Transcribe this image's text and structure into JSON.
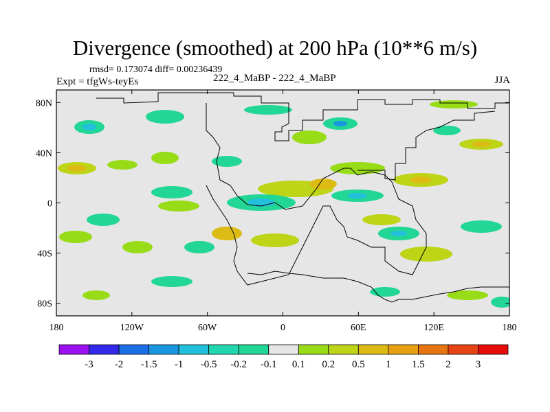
{
  "header": {
    "title": "Divergence (smoothed) at 200 hPa (10**6 m/s)",
    "stats": "rmsd= 0.173074 diff= 0.00236439",
    "expt": "Expt = tfgWs-teyEs",
    "runs": "222_4_MaBP - 222_4_MaBP",
    "season": "JJA"
  },
  "chart_data": {
    "type": "heatmap",
    "title": "Divergence (smoothed) at 200 hPa (10**6 m/s)",
    "xlabel": "",
    "ylabel": "",
    "xlim": [
      -180,
      180
    ],
    "ylim": [
      -90,
      90
    ],
    "x_ticks": [
      {
        "value": -180,
        "label": "180"
      },
      {
        "value": -120,
        "label": "120W"
      },
      {
        "value": -60,
        "label": "60W"
      },
      {
        "value": 0,
        "label": "0"
      },
      {
        "value": 60,
        "label": "60E"
      },
      {
        "value": 120,
        "label": "120E"
      },
      {
        "value": 180,
        "label": "180"
      }
    ],
    "y_ticks": [
      {
        "value": 80,
        "label": "80N"
      },
      {
        "value": 40,
        "label": "40N"
      },
      {
        "value": 0,
        "label": "0"
      },
      {
        "value": -40,
        "label": "40S"
      },
      {
        "value": -80,
        "label": "80S"
      }
    ],
    "colorbar": {
      "labels": [
        "-3",
        "-2",
        "-1.5",
        "-1",
        "-0.5",
        "-0.2",
        "-0.1",
        "0.1",
        "0.2",
        "0.5",
        "1",
        "1.5",
        "2",
        "3"
      ],
      "colors": [
        "#9a10ee",
        "#3228e8",
        "#1a6ee6",
        "#1a96e0",
        "#22c0dc",
        "#22d6b0",
        "#22d696",
        "#e6e6e6",
        "#98dc18",
        "#bed416",
        "#dcbc14",
        "#e6a012",
        "#e67412",
        "#e64414",
        "#e60c0a"
      ]
    }
  }
}
